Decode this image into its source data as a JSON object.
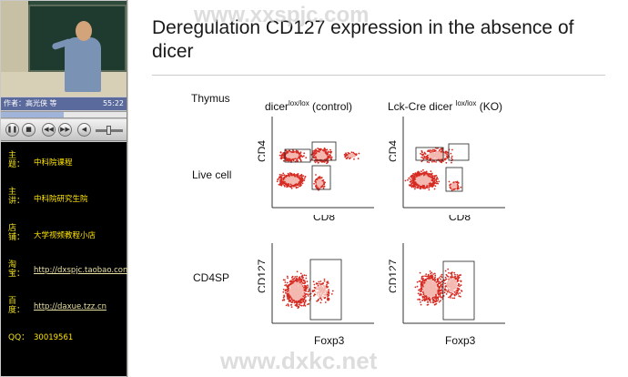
{
  "player": {
    "info_text": "作者：高光侠 等",
    "time": "55:22",
    "progress_fraction": 0.5,
    "buttons": [
      "pause",
      "stop",
      "previous",
      "next",
      "volume"
    ],
    "promo": [
      {
        "label": "主题：",
        "value": "中科院课程",
        "link": false
      },
      {
        "label": "主讲：",
        "value": "中科院研究生院",
        "link": false
      },
      {
        "label": "店铺：",
        "value": "大学视频教程小店",
        "link": false
      },
      {
        "label": "淘宝：",
        "value": "http://dxspjc.taobao.com",
        "link": true
      },
      {
        "label": "百度：",
        "value": "http://daxue.tzz.cn",
        "link": true
      },
      {
        "label": "QQ：",
        "value": "30019561",
        "link": false
      }
    ]
  },
  "slide": {
    "title": "Deregulation CD127 expression in the absence of dicer",
    "row_labels": {
      "thymus": "Thymus",
      "live_cell": "Live cell",
      "cd4sp": "CD4SP"
    },
    "col_left": "dicer",
    "col_left_sup": "lox/lox",
    "col_left_suffix": " (control)",
    "col_right": "Lck-Cre dicer ",
    "col_right_sup": "lox/lox",
    "col_right_suffix": " (KO)",
    "axes": {
      "cd4": "CD4",
      "cd8": "CD8",
      "cd127": "CD127",
      "foxp3": "Foxp3"
    }
  },
  "watermarks": {
    "top": "www.xxspjc.com",
    "bottom": "www.dxkc.net"
  },
  "colors": {
    "dot": "#d62b22",
    "dot_light": "#f08a80",
    "promo_text": "#ffe400",
    "player_bar": "#5b6a9c"
  }
}
